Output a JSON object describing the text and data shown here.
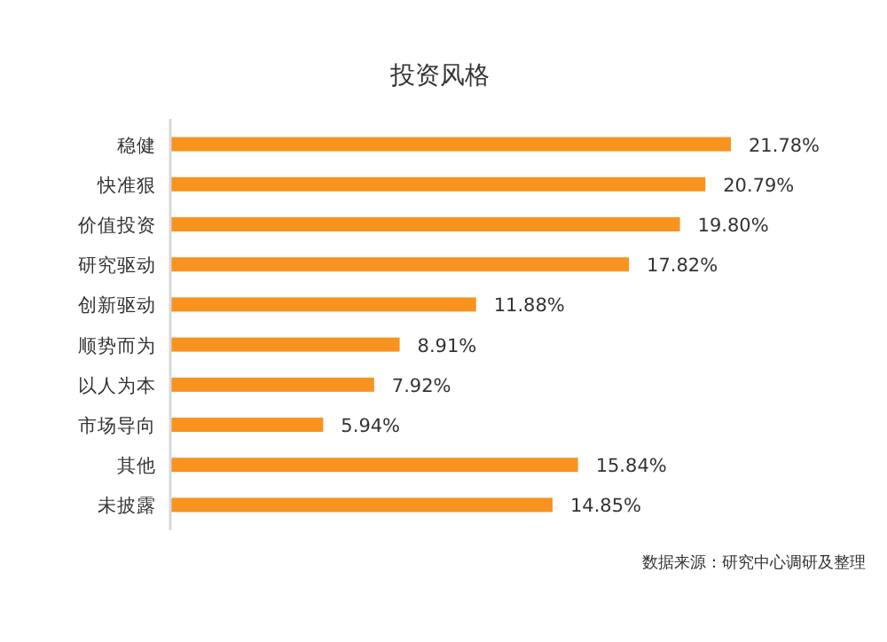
{
  "chart_data": {
    "type": "bar",
    "orientation": "horizontal",
    "title": "投资风格",
    "categories": [
      "稳健",
      "快准狠",
      "价值投资",
      "研究驱动",
      "创新驱动",
      "顺势而为",
      "以人为本",
      "市场导向",
      "其他",
      "未披露"
    ],
    "values": [
      21.78,
      20.79,
      19.8,
      17.82,
      11.88,
      8.91,
      7.92,
      5.94,
      15.84,
      14.85
    ],
    "value_labels": [
      "21.78%",
      "20.79%",
      "19.80%",
      "17.82%",
      "11.88%",
      "8.91%",
      "7.92%",
      "5.94%",
      "15.84%",
      "14.85%"
    ],
    "color": "#f7931e",
    "annotations": [
      "数据来源：研究中心调研及整理"
    ]
  }
}
